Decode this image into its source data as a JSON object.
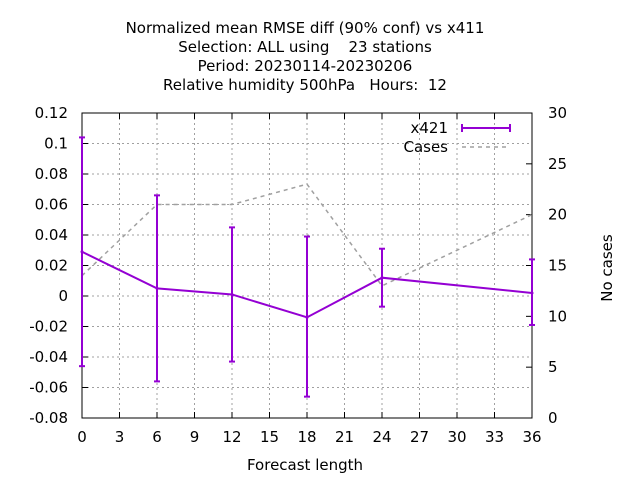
{
  "chart_data": {
    "type": "line",
    "title_lines": [
      "Normalized mean RMSE diff (90% conf) vs x411",
      "Selection: ALL using    23 stations",
      "Period: 20230114-20230206",
      "Relative humidity 500hPa   Hours:  12"
    ],
    "xlabel": "Forecast length",
    "ylabel": "",
    "y2label": "No cases",
    "xlim": [
      0,
      36
    ],
    "ylim": [
      -0.08,
      0.12
    ],
    "y2lim": [
      0,
      30
    ],
    "x_ticks": [
      0,
      3,
      6,
      9,
      12,
      15,
      18,
      21,
      24,
      27,
      30,
      33,
      36
    ],
    "y_ticks": [
      -0.08,
      -0.06,
      -0.04,
      -0.02,
      0,
      0.02,
      0.04,
      0.06,
      0.08,
      0.1,
      0.12
    ],
    "y_tick_labels": [
      "-0.08",
      "-0.06",
      "-0.04",
      "-0.02",
      "0",
      "0.02",
      "0.04",
      "0.06",
      "0.08",
      "0.1",
      "0.12"
    ],
    "y2_ticks": [
      0,
      5,
      10,
      15,
      20,
      25,
      30
    ],
    "grid": true,
    "legend_position": "top-right",
    "series": [
      {
        "name": "x421",
        "axis": "left",
        "color": "#9400d3",
        "style": "solid-errorbars",
        "x": [
          0,
          6,
          12,
          18,
          24,
          36
        ],
        "y": [
          0.029,
          0.005,
          0.001,
          -0.014,
          0.012,
          0.002
        ],
        "err_low": [
          -0.046,
          -0.056,
          -0.043,
          -0.066,
          -0.007,
          -0.019
        ],
        "err_high": [
          0.104,
          0.066,
          0.045,
          0.039,
          0.031,
          0.024
        ]
      },
      {
        "name": "Cases",
        "axis": "right",
        "color": "#a0a0a0",
        "style": "dashed",
        "x": [
          0,
          6,
          12,
          18,
          24,
          36
        ],
        "y": [
          14,
          21,
          21,
          23,
          13,
          20
        ]
      }
    ]
  }
}
